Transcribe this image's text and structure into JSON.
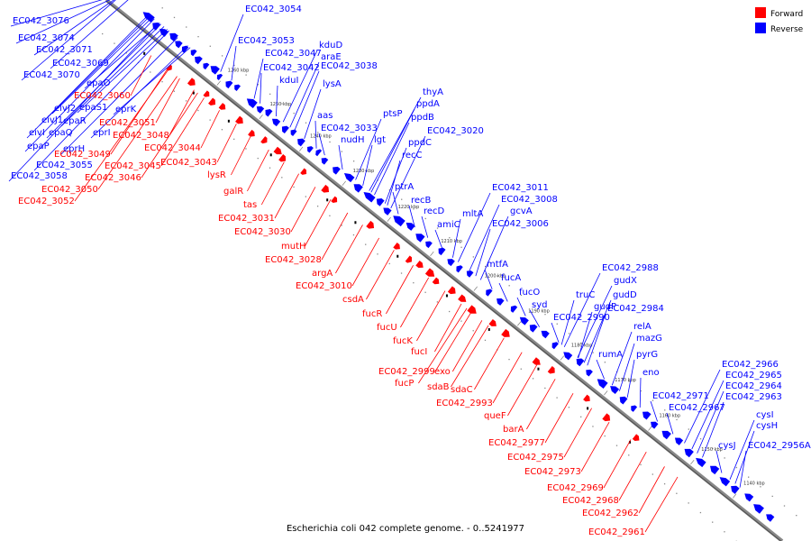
{
  "caption": "Escherichia coli 042 complete genome. - 0..5241977",
  "legend": [
    {
      "label": "Forward",
      "color": "#ff0000"
    },
    {
      "label": "Reverse",
      "color": "#0000ff"
    }
  ],
  "ticks": [
    "1260 kbp",
    "1250 kbp",
    "1240 kbp",
    "1230 kbp",
    "1220 kbp",
    "1210 kbp",
    "1200 kbp",
    "1190 kbp",
    "1180 kbp",
    "1170 kbp",
    "1160 kbp",
    "1150 kbp",
    "1140 kbp"
  ],
  "genes_reverse": [
    "EC042_3076",
    "EC042_3074",
    "EC042_3071",
    "EC042_3069",
    "EC042_3070",
    "epaO",
    "eprK",
    "eivJ2",
    "epaS1",
    "eivJ1",
    "epaR",
    "eivI",
    "epaQ",
    "epaP",
    "eprH",
    "eprI",
    "EC042_3055",
    "EC042_3058",
    "EC042_3054",
    "EC042_3053",
    "EC042_3047",
    "EC042_3042",
    "kduI",
    "kduD",
    "araE",
    "EC042_3038",
    "lysA",
    "aas",
    "EC042_3033",
    "nudH",
    "lgt",
    "ptsP",
    "thyA",
    "ppdA",
    "ppdB",
    "EC042_3020",
    "ppdC",
    "recC",
    "ptrA",
    "recB",
    "recD",
    "amiC",
    "mltA",
    "EC042_3011",
    "EC042_3008",
    "gcvA",
    "EC042_3006",
    "mtfA",
    "fucA",
    "fucO",
    "syd",
    "truC",
    "EC042_2988",
    "gudX",
    "gudD",
    "gudP",
    "EC042_2984",
    "EC042_2990",
    "relA",
    "rumA",
    "mazG",
    "pyrG",
    "eno",
    "EC042_2966",
    "EC042_2965",
    "EC042_2964",
    "EC042_2963",
    "EC042_2971",
    "EC042_2967",
    "cysI",
    "cysH",
    "cysJ",
    "EC042_2956A"
  ],
  "genes_forward": [
    "EC042_3060",
    "EC042_3051",
    "EC042_3048",
    "EC042_3044",
    "EC042_3049",
    "EC042_3045",
    "EC042_3043",
    "EC042_3046",
    "EC042_3050",
    "EC042_3052",
    "lysR",
    "galR",
    "tas",
    "EC042_3031",
    "EC042_3030",
    "mutH",
    "EC042_3028",
    "argA",
    "EC042_3010",
    "csdA",
    "fucR",
    "fucU",
    "fucK",
    "fucI",
    "EC042_2999",
    "exo",
    "fucP",
    "sdaB",
    "sdaC",
    "EC042_2993",
    "queF",
    "barA",
    "EC042_2977",
    "EC042_2975",
    "EC042_2973",
    "EC042_2969",
    "EC042_2968",
    "EC042_2962",
    "EC042_2961"
  ]
}
